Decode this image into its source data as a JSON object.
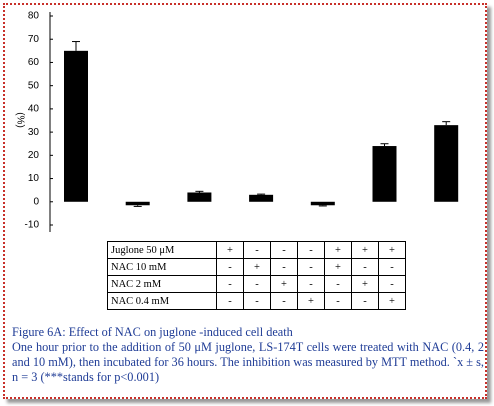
{
  "chart_data": {
    "type": "bar",
    "y_label": "(%)",
    "categories": [
      null,
      null,
      null,
      null,
      null,
      null,
      null
    ],
    "values": [
      65,
      -1.5,
      4,
      3,
      -1.5,
      24,
      33
    ],
    "errors": [
      4,
      0.5,
      0.5,
      0.3,
      0.3,
      1,
      1.5
    ],
    "color": "#000000",
    "ylim": [
      -10,
      80
    ],
    "yticks": [
      -10,
      0,
      10,
      20,
      30,
      40,
      50,
      60,
      70,
      80
    ]
  },
  "table": {
    "rows": [
      {
        "label": "Juglone 50 μM",
        "cells": [
          "+",
          "-",
          "-",
          "-",
          "+",
          "+",
          "+"
        ]
      },
      {
        "label": "NAC 10 mM",
        "cells": [
          "-",
          "+",
          "-",
          "-",
          "+",
          "-",
          "-"
        ]
      },
      {
        "label": "NAC 2 mM",
        "cells": [
          "-",
          "-",
          "+",
          "-",
          "-",
          "+",
          "-"
        ]
      },
      {
        "label": "NAC 0.4 mM",
        "cells": [
          "-",
          "-",
          "-",
          "+",
          "-",
          "-",
          "+"
        ]
      }
    ]
  },
  "caption": {
    "title": "Figure 6A: Effect of NAC on juglone -induced cell death",
    "text": "One hour prior to the addition of 50 μM juglone, LS-174T cells were treated with NAC (0.4, 2 and 10 mM), then incubated for 36 hours. The inhibition was measured by MTT method. `x ± s, n = 3 (***stands for p<0.001)"
  }
}
